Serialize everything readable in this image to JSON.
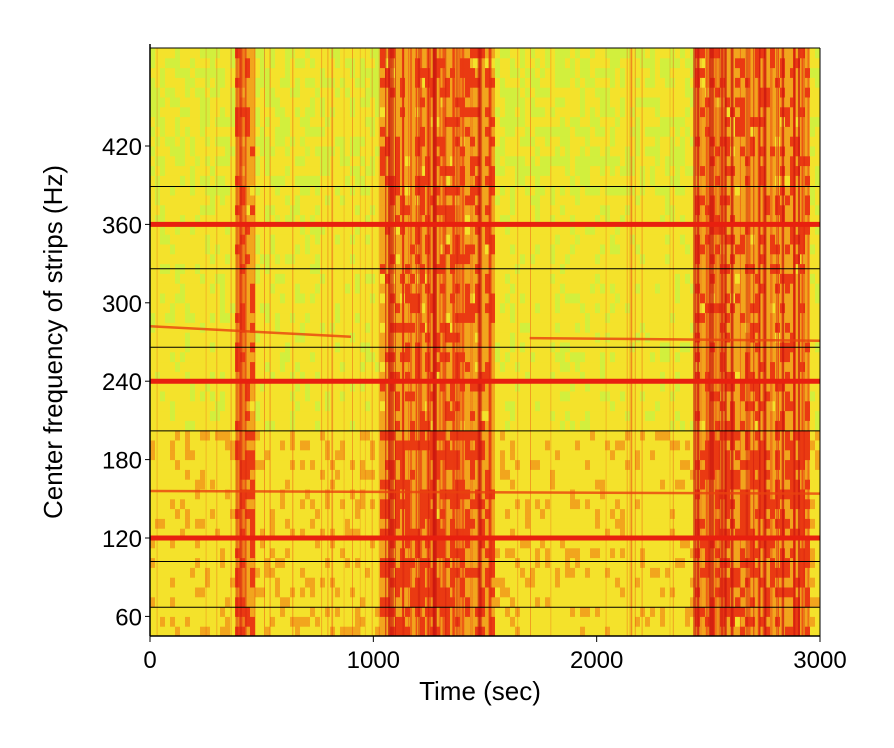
{
  "chart_data": {
    "type": "heatmap",
    "title": "",
    "xlabel": "Time (sec)",
    "ylabel": "Center frequency of strips (Hz)",
    "xlim": [
      0,
      3000
    ],
    "ylim": [
      45,
      495
    ],
    "x_ticks": [
      0,
      1000,
      2000,
      3000
    ],
    "y_ticks": [
      60,
      120,
      180,
      240,
      300,
      360,
      420
    ],
    "strip_boundaries_hz": [
      67,
      102,
      202,
      266,
      326,
      389
    ],
    "harmonic_lines_hz": [
      120,
      240,
      360
    ],
    "faint_lines": [
      {
        "x": [
          0,
          900
        ],
        "y": [
          282,
          274
        ]
      },
      {
        "x": [
          1700,
          3000
        ],
        "y": [
          273,
          271
        ]
      },
      {
        "x": [
          0,
          3000
        ],
        "y": [
          156,
          154
        ]
      }
    ],
    "broadband_bursts_sec": [
      [
        380,
        460
      ],
      [
        1030,
        1550
      ],
      [
        2430,
        2950
      ]
    ],
    "colormap": [
      "#d2ef3d",
      "#f4e22b",
      "#f2a51d",
      "#ea3a12",
      "#cc1810"
    ],
    "grid": false
  }
}
